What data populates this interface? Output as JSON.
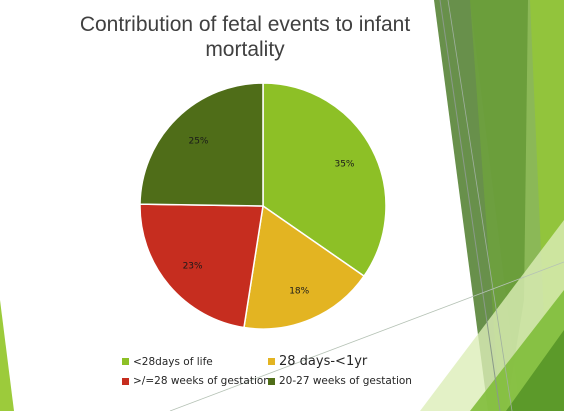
{
  "chart_data": {
    "type": "pie",
    "title": "Contribution of fetal events to infant mortality",
    "start_angle_deg": 0,
    "direction": "clockwise",
    "slices": [
      {
        "label": "<28days of life",
        "value": 35,
        "value_label": "35%",
        "color": "#8dc026"
      },
      {
        "label": "28 days-<1yr",
        "value": 18,
        "value_label": "18%",
        "color": "#e3b422"
      },
      {
        "label": ">/=28 weeks of gestation",
        "value": 23,
        "value_label": "23%",
        "color": "#c62d1f"
      },
      {
        "label": "20-27 weeks of gestation",
        "value": 25,
        "value_label": "25%",
        "color": "#4f6d18"
      }
    ],
    "legend_position": "bottom"
  }
}
